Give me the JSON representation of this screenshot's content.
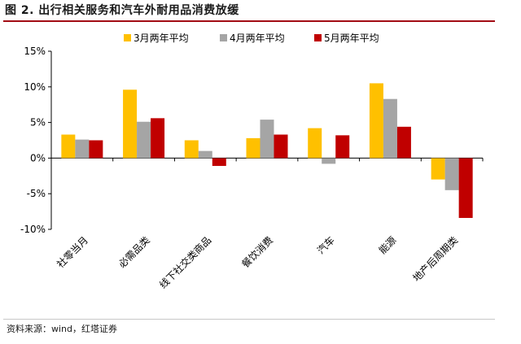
{
  "title": "图 2. 出行相关服务和汽车外耐用品消费放缓",
  "source": "资料来源：wind，红塔证券",
  "chart_data": {
    "type": "bar",
    "categories": [
      "社零当月",
      "必需品类",
      "线下社交类商品",
      "餐饮消费",
      "汽车",
      "能源",
      "地产后周期类"
    ],
    "series": [
      {
        "name": "3月两年平均",
        "color": "#ffc000",
        "values": [
          3.3,
          9.6,
          2.5,
          2.8,
          4.2,
          10.5,
          -3.0
        ]
      },
      {
        "name": "4月两年平均",
        "color": "#a5a5a5",
        "values": [
          2.6,
          5.1,
          1.0,
          5.4,
          -0.8,
          8.3,
          -4.5
        ]
      },
      {
        "name": "5月两年平均",
        "color": "#c00000",
        "values": [
          2.5,
          5.6,
          -1.1,
          3.3,
          3.2,
          4.4,
          -8.4
        ]
      }
    ],
    "ylim": [
      -10,
      15
    ],
    "yticks": [
      -10,
      -5,
      0,
      5,
      10,
      15
    ],
    "ytick_labels": [
      "-10%",
      "-5%",
      "0%",
      "5%",
      "10%",
      "15%"
    ],
    "grid": false,
    "legend": "top-center"
  }
}
